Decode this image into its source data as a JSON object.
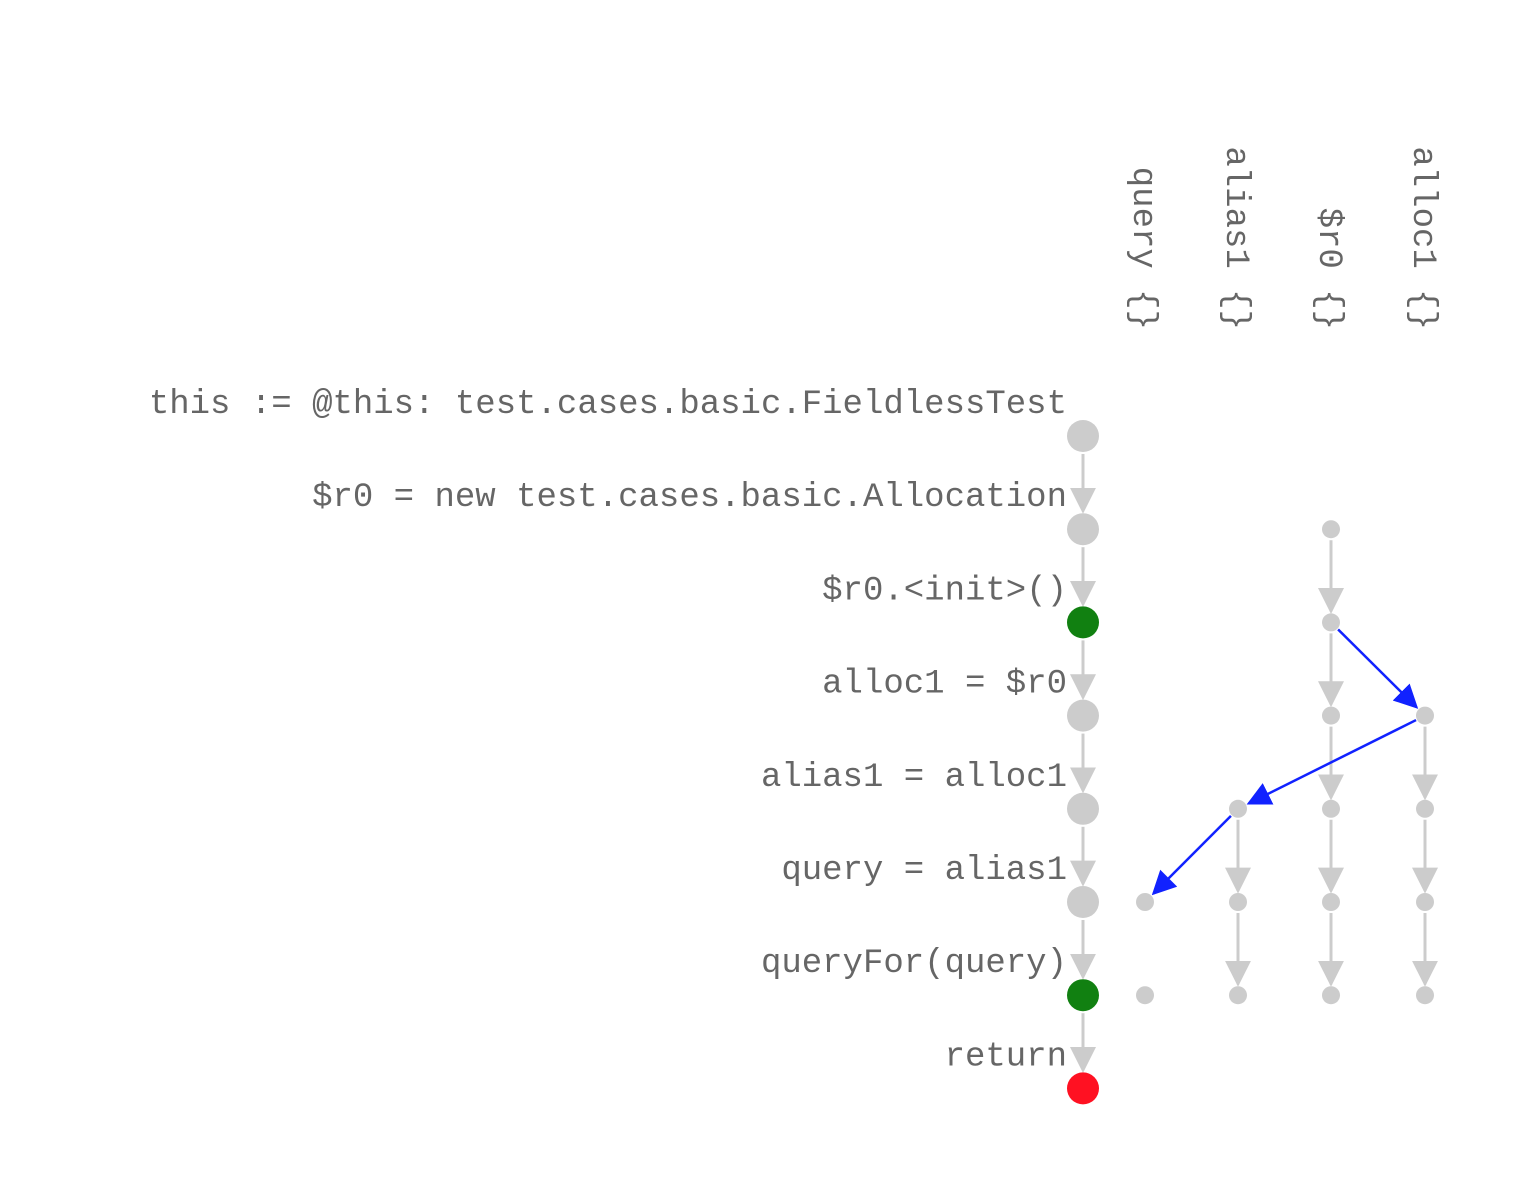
{
  "statements": [
    {
      "label": "this := @this: test.cases.basic.FieldlessTest",
      "status": "normal"
    },
    {
      "label": "$r0 = new test.cases.basic.Allocation",
      "status": "normal"
    },
    {
      "label": "$r0.<init>()",
      "status": "call"
    },
    {
      "label": "alloc1 = $r0",
      "status": "normal"
    },
    {
      "label": "alias1 = alloc1",
      "status": "normal"
    },
    {
      "label": "query = alias1",
      "status": "normal"
    },
    {
      "label": "queryFor(query)",
      "status": "call"
    },
    {
      "label": "return",
      "status": "exit"
    }
  ],
  "columns": [
    {
      "label": "query {}",
      "facts_at_nodes": [
        5,
        6
      ]
    },
    {
      "label": "alias1 {}",
      "facts_at_nodes": [
        4,
        5,
        6
      ]
    },
    {
      "label": "$r0 {}",
      "facts_at_nodes": [
        1,
        2,
        3,
        4,
        5,
        6
      ]
    },
    {
      "label": "alloc1 {}",
      "facts_at_nodes": [
        3,
        4,
        5,
        6
      ]
    }
  ],
  "flow_edges": [
    {
      "from_col": 2,
      "from_node": 2,
      "to_col": 3,
      "to_node": 3
    },
    {
      "from_col": 3,
      "from_node": 3,
      "to_col": 1,
      "to_node": 4
    },
    {
      "from_col": 1,
      "from_node": 4,
      "to_col": 0,
      "to_node": 5
    }
  ],
  "colors": {
    "normal": "#cccccc",
    "call": "#118011",
    "exit": "#ff1122",
    "flow": "#1122ff",
    "text": "#666666"
  }
}
